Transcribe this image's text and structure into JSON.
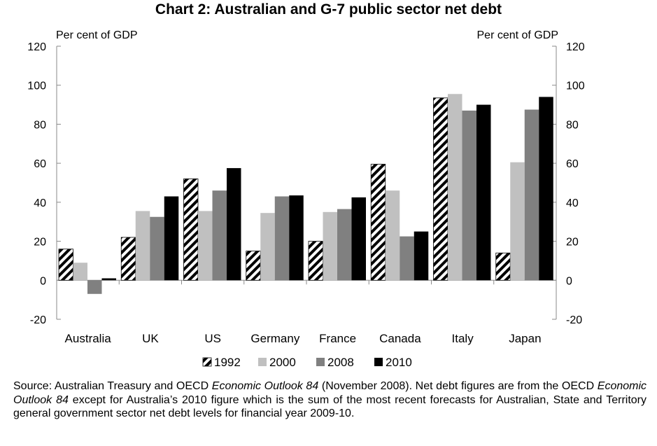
{
  "chart_data": {
    "type": "bar",
    "title": "Chart 2: Australian and G-7 public sector net debt",
    "ylabel_left": "Per cent of GDP",
    "ylabel_right": "Per cent of GDP",
    "ylim": [
      -20,
      120
    ],
    "yticks": [
      -20,
      0,
      20,
      40,
      60,
      80,
      100,
      120
    ],
    "categories": [
      "Australia",
      "UK",
      "US",
      "Germany",
      "France",
      "Canada",
      "Italy",
      "Japan"
    ],
    "series": [
      {
        "name": "1992",
        "style": "hatched",
        "color": "#000000",
        "values": [
          16,
          22,
          52,
          15,
          20,
          59.5,
          93.5,
          14
        ]
      },
      {
        "name": "2000",
        "style": "solid",
        "color": "#c0c0c0",
        "values": [
          9,
          35.5,
          35.5,
          34.5,
          35,
          46,
          95.5,
          60.5
        ]
      },
      {
        "name": "2008",
        "style": "solid",
        "color": "#808080",
        "values": [
          -7,
          32.5,
          46,
          43,
          36.5,
          22.5,
          87,
          87.5
        ]
      },
      {
        "name": "2010",
        "style": "solid",
        "color": "#000000",
        "values": [
          1,
          43,
          57.5,
          43.5,
          42.5,
          25,
          90,
          94
        ]
      }
    ],
    "grid": false,
    "legend": "bottom"
  },
  "source": {
    "prefix": "Source: Australian Treasury and OECD ",
    "pub1": "Economic Outlook 84",
    "middle": " (November 2008). Net debt figures are  from the OECD ",
    "pub2": "Economic Outlook 84",
    "suffix": " except for Australia’s 2010 figure which is the sum of the most recent forecasts for Australian, State and Territory general government sector net debt levels for financial year 2009-10."
  }
}
